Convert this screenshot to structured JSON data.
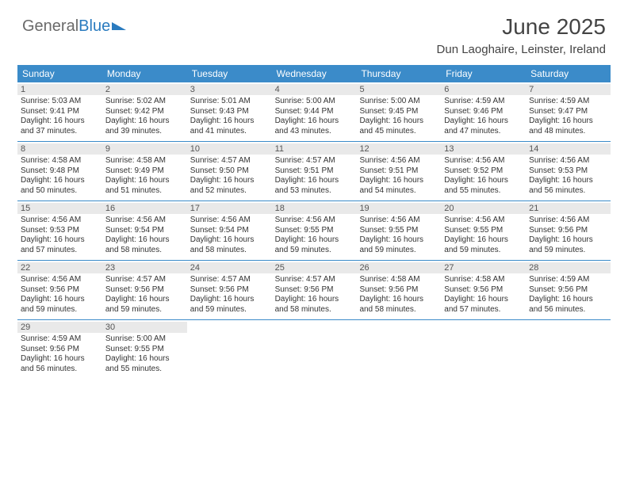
{
  "brand": {
    "part1": "General",
    "part2": "Blue"
  },
  "title": "June 2025",
  "location": "Dun Laoghaire, Leinster, Ireland",
  "colors": {
    "header_bg": "#3b8bc9",
    "header_text": "#ffffff",
    "daynum_bg": "#e9e9e9",
    "rule": "#3b8bc9",
    "body_text": "#333333",
    "brand_gray": "#6a6a6a",
    "brand_blue": "#2a7bbf",
    "page_bg": "#ffffff"
  },
  "typography": {
    "title_fontsize": 28,
    "location_fontsize": 15,
    "dayheader_fontsize": 12,
    "daynum_fontsize": 11,
    "cell_fontsize": 10
  },
  "day_headers": [
    "Sunday",
    "Monday",
    "Tuesday",
    "Wednesday",
    "Thursday",
    "Friday",
    "Saturday"
  ],
  "weeks": [
    [
      {
        "n": "1",
        "sr": "Sunrise: 5:03 AM",
        "ss": "Sunset: 9:41 PM",
        "d1": "Daylight: 16 hours",
        "d2": "and 37 minutes."
      },
      {
        "n": "2",
        "sr": "Sunrise: 5:02 AM",
        "ss": "Sunset: 9:42 PM",
        "d1": "Daylight: 16 hours",
        "d2": "and 39 minutes."
      },
      {
        "n": "3",
        "sr": "Sunrise: 5:01 AM",
        "ss": "Sunset: 9:43 PM",
        "d1": "Daylight: 16 hours",
        "d2": "and 41 minutes."
      },
      {
        "n": "4",
        "sr": "Sunrise: 5:00 AM",
        "ss": "Sunset: 9:44 PM",
        "d1": "Daylight: 16 hours",
        "d2": "and 43 minutes."
      },
      {
        "n": "5",
        "sr": "Sunrise: 5:00 AM",
        "ss": "Sunset: 9:45 PM",
        "d1": "Daylight: 16 hours",
        "d2": "and 45 minutes."
      },
      {
        "n": "6",
        "sr": "Sunrise: 4:59 AM",
        "ss": "Sunset: 9:46 PM",
        "d1": "Daylight: 16 hours",
        "d2": "and 47 minutes."
      },
      {
        "n": "7",
        "sr": "Sunrise: 4:59 AM",
        "ss": "Sunset: 9:47 PM",
        "d1": "Daylight: 16 hours",
        "d2": "and 48 minutes."
      }
    ],
    [
      {
        "n": "8",
        "sr": "Sunrise: 4:58 AM",
        "ss": "Sunset: 9:48 PM",
        "d1": "Daylight: 16 hours",
        "d2": "and 50 minutes."
      },
      {
        "n": "9",
        "sr": "Sunrise: 4:58 AM",
        "ss": "Sunset: 9:49 PM",
        "d1": "Daylight: 16 hours",
        "d2": "and 51 minutes."
      },
      {
        "n": "10",
        "sr": "Sunrise: 4:57 AM",
        "ss": "Sunset: 9:50 PM",
        "d1": "Daylight: 16 hours",
        "d2": "and 52 minutes."
      },
      {
        "n": "11",
        "sr": "Sunrise: 4:57 AM",
        "ss": "Sunset: 9:51 PM",
        "d1": "Daylight: 16 hours",
        "d2": "and 53 minutes."
      },
      {
        "n": "12",
        "sr": "Sunrise: 4:56 AM",
        "ss": "Sunset: 9:51 PM",
        "d1": "Daylight: 16 hours",
        "d2": "and 54 minutes."
      },
      {
        "n": "13",
        "sr": "Sunrise: 4:56 AM",
        "ss": "Sunset: 9:52 PM",
        "d1": "Daylight: 16 hours",
        "d2": "and 55 minutes."
      },
      {
        "n": "14",
        "sr": "Sunrise: 4:56 AM",
        "ss": "Sunset: 9:53 PM",
        "d1": "Daylight: 16 hours",
        "d2": "and 56 minutes."
      }
    ],
    [
      {
        "n": "15",
        "sr": "Sunrise: 4:56 AM",
        "ss": "Sunset: 9:53 PM",
        "d1": "Daylight: 16 hours",
        "d2": "and 57 minutes."
      },
      {
        "n": "16",
        "sr": "Sunrise: 4:56 AM",
        "ss": "Sunset: 9:54 PM",
        "d1": "Daylight: 16 hours",
        "d2": "and 58 minutes."
      },
      {
        "n": "17",
        "sr": "Sunrise: 4:56 AM",
        "ss": "Sunset: 9:54 PM",
        "d1": "Daylight: 16 hours",
        "d2": "and 58 minutes."
      },
      {
        "n": "18",
        "sr": "Sunrise: 4:56 AM",
        "ss": "Sunset: 9:55 PM",
        "d1": "Daylight: 16 hours",
        "d2": "and 59 minutes."
      },
      {
        "n": "19",
        "sr": "Sunrise: 4:56 AM",
        "ss": "Sunset: 9:55 PM",
        "d1": "Daylight: 16 hours",
        "d2": "and 59 minutes."
      },
      {
        "n": "20",
        "sr": "Sunrise: 4:56 AM",
        "ss": "Sunset: 9:55 PM",
        "d1": "Daylight: 16 hours",
        "d2": "and 59 minutes."
      },
      {
        "n": "21",
        "sr": "Sunrise: 4:56 AM",
        "ss": "Sunset: 9:56 PM",
        "d1": "Daylight: 16 hours",
        "d2": "and 59 minutes."
      }
    ],
    [
      {
        "n": "22",
        "sr": "Sunrise: 4:56 AM",
        "ss": "Sunset: 9:56 PM",
        "d1": "Daylight: 16 hours",
        "d2": "and 59 minutes."
      },
      {
        "n": "23",
        "sr": "Sunrise: 4:57 AM",
        "ss": "Sunset: 9:56 PM",
        "d1": "Daylight: 16 hours",
        "d2": "and 59 minutes."
      },
      {
        "n": "24",
        "sr": "Sunrise: 4:57 AM",
        "ss": "Sunset: 9:56 PM",
        "d1": "Daylight: 16 hours",
        "d2": "and 59 minutes."
      },
      {
        "n": "25",
        "sr": "Sunrise: 4:57 AM",
        "ss": "Sunset: 9:56 PM",
        "d1": "Daylight: 16 hours",
        "d2": "and 58 minutes."
      },
      {
        "n": "26",
        "sr": "Sunrise: 4:58 AM",
        "ss": "Sunset: 9:56 PM",
        "d1": "Daylight: 16 hours",
        "d2": "and 58 minutes."
      },
      {
        "n": "27",
        "sr": "Sunrise: 4:58 AM",
        "ss": "Sunset: 9:56 PM",
        "d1": "Daylight: 16 hours",
        "d2": "and 57 minutes."
      },
      {
        "n": "28",
        "sr": "Sunrise: 4:59 AM",
        "ss": "Sunset: 9:56 PM",
        "d1": "Daylight: 16 hours",
        "d2": "and 56 minutes."
      }
    ],
    [
      {
        "n": "29",
        "sr": "Sunrise: 4:59 AM",
        "ss": "Sunset: 9:56 PM",
        "d1": "Daylight: 16 hours",
        "d2": "and 56 minutes."
      },
      {
        "n": "30",
        "sr": "Sunrise: 5:00 AM",
        "ss": "Sunset: 9:55 PM",
        "d1": "Daylight: 16 hours",
        "d2": "and 55 minutes."
      },
      null,
      null,
      null,
      null,
      null
    ]
  ]
}
